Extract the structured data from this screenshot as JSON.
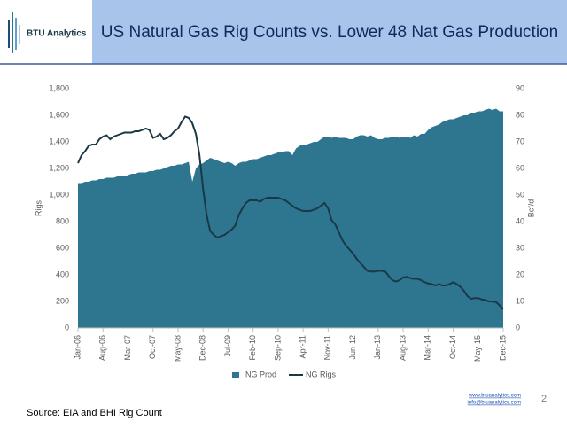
{
  "header": {
    "logo": "BTU Analytics",
    "title": "US Natural Gas Rig Counts vs. Lower 48 Nat Gas Production"
  },
  "footer": {
    "website": "www.btuanalytics.com",
    "email": "info@btuanalytics.com",
    "page": "2",
    "source": "Source: EIA and BHI Rig Count"
  },
  "chart_data": {
    "type": "combo",
    "categories": [
      "Jan-06",
      null,
      null,
      null,
      null,
      null,
      null,
      "Aug-06",
      null,
      null,
      null,
      null,
      null,
      null,
      "Mar-07",
      null,
      null,
      null,
      null,
      null,
      null,
      "Oct-07",
      null,
      null,
      null,
      null,
      null,
      null,
      "May-08",
      null,
      null,
      null,
      null,
      null,
      null,
      "Dec-08",
      null,
      null,
      null,
      null,
      null,
      null,
      "Jul-09",
      null,
      null,
      null,
      null,
      null,
      null,
      "Feb-10",
      null,
      null,
      null,
      null,
      null,
      null,
      "Sep-10",
      null,
      null,
      null,
      null,
      null,
      null,
      "Apr-11",
      null,
      null,
      null,
      null,
      null,
      null,
      "Nov-11",
      null,
      null,
      null,
      null,
      null,
      null,
      "Jun-12",
      null,
      null,
      null,
      null,
      null,
      null,
      "Jan-13",
      null,
      null,
      null,
      null,
      null,
      null,
      "Aug-13",
      null,
      null,
      null,
      null,
      null,
      null,
      "Mar-14",
      null,
      null,
      null,
      null,
      null,
      null,
      "Oct-14",
      null,
      null,
      null,
      null,
      null,
      null,
      "May-15",
      null,
      null,
      null,
      null,
      null,
      null,
      "Dec-15"
    ],
    "series": [
      {
        "name": "NG Prod",
        "type": "area",
        "axis": "y2",
        "color": "#2e7590",
        "values": [
          54.5,
          54.5,
          55,
          55,
          55.5,
          55.5,
          56,
          56,
          56.5,
          56.5,
          56.5,
          57,
          57,
          57,
          57.5,
          58,
          58,
          58.5,
          58.5,
          58.5,
          59,
          59,
          59.5,
          59.5,
          60,
          60.5,
          61,
          61,
          61.5,
          61.5,
          62,
          62.5,
          55,
          60,
          61.5,
          62,
          63,
          64,
          63.5,
          63,
          62.5,
          62,
          62.5,
          62,
          61,
          62,
          62.5,
          62.5,
          63,
          63.5,
          63.5,
          64,
          64.5,
          65,
          65,
          65.5,
          66,
          66,
          66.5,
          66.5,
          65,
          67.5,
          68.5,
          69,
          69,
          69.5,
          70,
          70,
          71,
          72,
          72,
          71.5,
          72,
          71.5,
          71.5,
          71.5,
          71,
          71,
          72,
          72.5,
          72.5,
          72,
          72.5,
          71.5,
          71,
          71,
          71.5,
          71.5,
          72,
          72,
          71.5,
          72,
          72,
          71.5,
          72.5,
          72,
          73,
          73,
          74.5,
          75.5,
          76,
          76.5,
          77.5,
          78,
          78.5,
          78.5,
          79,
          79.5,
          80,
          80,
          81,
          81,
          81.5,
          81.5,
          82,
          82.5,
          82,
          82.5,
          81.5,
          81.5
        ]
      },
      {
        "name": "NG Rigs",
        "type": "line",
        "axis": "y",
        "color": "#1b3847",
        "values": [
          1240,
          1300,
          1330,
          1370,
          1380,
          1380,
          1420,
          1440,
          1450,
          1420,
          1440,
          1450,
          1460,
          1470,
          1470,
          1470,
          1480,
          1480,
          1490,
          1500,
          1490,
          1430,
          1440,
          1460,
          1420,
          1430,
          1450,
          1480,
          1500,
          1550,
          1590,
          1580,
          1540,
          1460,
          1300,
          1050,
          850,
          730,
          700,
          680,
          690,
          700,
          720,
          740,
          770,
          850,
          900,
          940,
          960,
          960,
          960,
          950,
          970,
          980,
          980,
          980,
          980,
          970,
          960,
          940,
          920,
          900,
          890,
          880,
          880,
          880,
          890,
          900,
          920,
          940,
          900,
          810,
          780,
          720,
          660,
          620,
          590,
          560,
          520,
          490,
          460,
          430,
          425,
          425,
          430,
          430,
          425,
          390,
          360,
          350,
          360,
          380,
          385,
          375,
          370,
          370,
          360,
          345,
          335,
          330,
          320,
          330,
          320,
          320,
          330,
          345,
          330,
          310,
          280,
          240,
          220,
          225,
          225,
          215,
          210,
          200,
          200,
          195,
          170,
          140
        ]
      }
    ],
    "y_label": "Rigs",
    "y2_label": "Bcf/d",
    "ylim": [
      0,
      1800
    ],
    "yticks": [
      0,
      200,
      400,
      600,
      800,
      {
        "value": 1000,
        "label": "1,000"
      },
      {
        "value": 1200,
        "label": "1,200"
      },
      {
        "value": 1400,
        "label": "1,400"
      },
      {
        "value": 1600,
        "label": "1,600"
      },
      {
        "value": 1800,
        "label": "1,800"
      }
    ],
    "y2lim": [
      0,
      90
    ],
    "y2ticks": [
      0,
      10,
      20,
      30,
      40,
      50,
      60,
      70,
      80,
      90
    ],
    "legend": "bottom"
  }
}
